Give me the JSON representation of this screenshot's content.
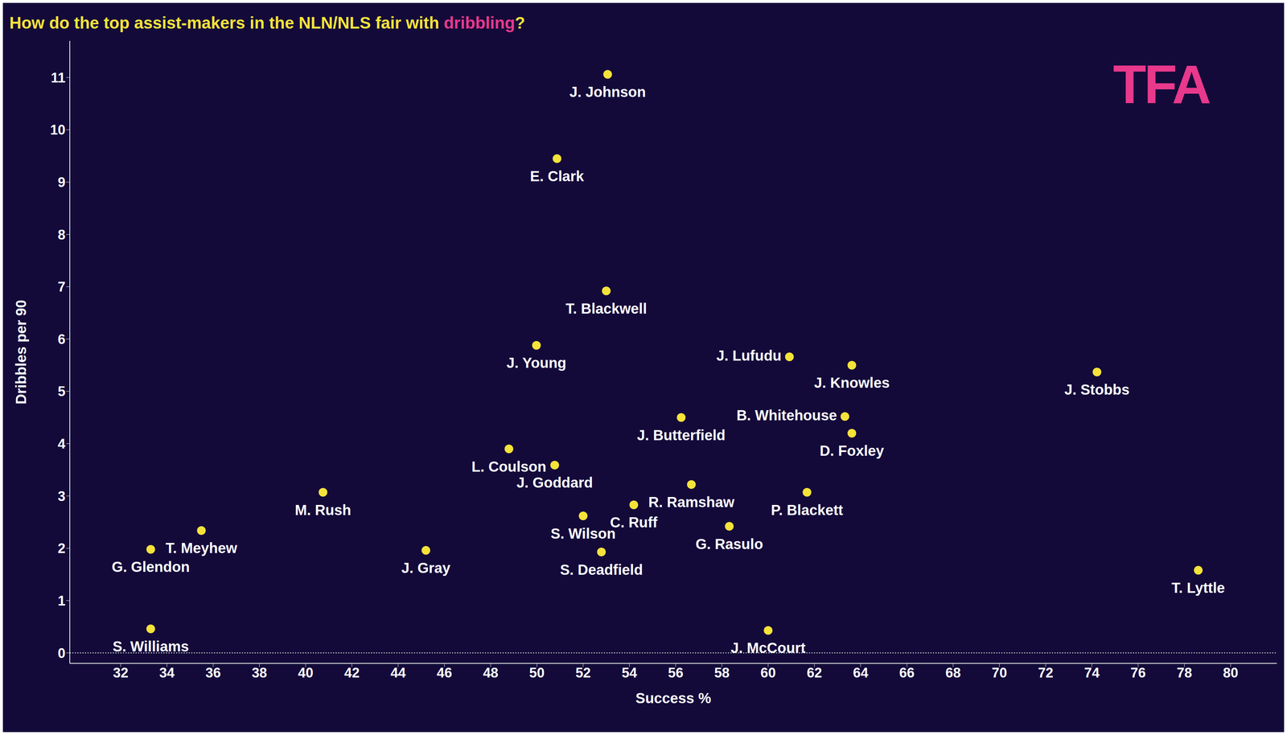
{
  "chart_data": {
    "type": "scatter",
    "title": "How do the top assist-makers in the NLN/NLS fair with dribbling?",
    "title_highlight": "dribbling",
    "x_label": "Success %",
    "y_label": "Dribbles per 90",
    "annotations": [
      "TFA"
    ],
    "labels": [
      "J. Johnson",
      "E. Clark",
      "T. Blackwell",
      "J. Young",
      "J. Lufudu",
      "J. Knowles",
      "J. Stobbs",
      "B. Whitehouse",
      "D. Foxley",
      "J. Butterfield",
      "L. Coulson",
      "J. Goddard",
      "M. Rush",
      "R. Ramshaw",
      "P. Blackett",
      "C. Ruff",
      "S. Wilson",
      "G. Rasulo",
      "T. Meyhew",
      "G. Glendon",
      "J. Gray",
      "S. Deadfield",
      "T. Lyttle",
      "S. Williams",
      "J. McCourt"
    ],
    "x": [
      53.06,
      50.87,
      53.0,
      49.98,
      60.92,
      63.62,
      74.22,
      63.32,
      63.62,
      56.24,
      48.79,
      50.77,
      40.75,
      56.68,
      61.68,
      54.19,
      52.0,
      58.32,
      35.49,
      33.3,
      45.2,
      52.79,
      78.6,
      33.3,
      60.0
    ],
    "values": [
      11.06,
      9.45,
      6.92,
      5.88,
      5.66,
      5.5,
      5.37,
      4.52,
      4.2,
      4.5,
      3.9,
      3.59,
      3.07,
      3.22,
      3.07,
      2.83,
      2.62,
      2.42,
      2.34,
      1.98,
      1.96,
      1.93,
      1.58,
      0.46,
      0.43
    ],
    "color": "#f5e33a",
    "marker": "circle",
    "xlim": [
      29.8,
      82.0
    ],
    "ylim": [
      -0.2,
      11.7
    ],
    "xticks": [
      32,
      34,
      36,
      38,
      40,
      42,
      44,
      46,
      48,
      50,
      52,
      54,
      56,
      58,
      60,
      62,
      64,
      66,
      68,
      70,
      72,
      74,
      76,
      78,
      80
    ],
    "yticks": [
      0,
      1,
      2,
      3,
      4,
      5,
      6,
      7,
      8,
      9,
      10,
      11
    ],
    "grid": false
  }
}
